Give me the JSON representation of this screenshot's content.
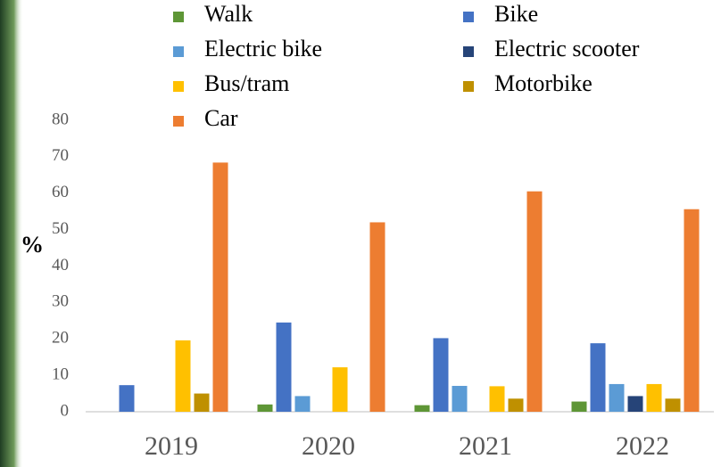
{
  "chart_data": {
    "type": "bar",
    "y_label": "%",
    "categories": [
      "2019",
      "2020",
      "2021",
      "2022"
    ],
    "series": [
      {
        "name": "Walk",
        "color": "#5e9636",
        "values": [
          0,
          2,
          1.8,
          2.8
        ]
      },
      {
        "name": "Bike",
        "color": "#4472c4",
        "values": [
          7.3,
          24.5,
          20.2,
          18.8
        ]
      },
      {
        "name": "Electric bike",
        "color": "#5b9bd5",
        "values": [
          0,
          4.3,
          7.1,
          7.6
        ]
      },
      {
        "name": "Electric scooter",
        "color": "#264478",
        "values": [
          0,
          0,
          0,
          4.3
        ]
      },
      {
        "name": "Bus/tram",
        "color": "#ffc000",
        "values": [
          19.6,
          12.2,
          7,
          7.6
        ]
      },
      {
        "name": "Motorbike",
        "color": "#bf9000",
        "values": [
          5,
          0,
          3.6,
          3.6
        ]
      },
      {
        "name": "Car",
        "color": "#ed7d31",
        "values": [
          68.4,
          52,
          60.5,
          55.6
        ]
      }
    ],
    "ylim": [
      0,
      80
    ],
    "yticks": [
      0,
      10,
      20,
      30,
      40,
      50,
      60,
      70,
      80
    ],
    "grid": false
  }
}
